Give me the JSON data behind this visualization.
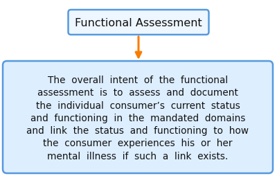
{
  "title_text": "Functional Assessment",
  "title_box_edge_color": "#5599dd",
  "title_box_face_color": "#eef6ff",
  "title_font_size": 11.5,
  "arrow_color": "#f97c00",
  "body_lines": [
    "The  overall  intent  of  the  functional",
    "assessment  is  to  assess  and  document",
    "the  individual  consumer’s  current  status",
    "and  functioning  in  the  mandated  domains",
    "and  link  the  status  and  functioning  to  how",
    "the  consumer  experiences  his  or  her",
    "mental  illness  if  such  a  link  exists."
  ],
  "body_box_edge_color": "#5599dd",
  "body_box_face_color": "#ddeeff",
  "body_font_size": 9.8,
  "background_color": "#ffffff"
}
